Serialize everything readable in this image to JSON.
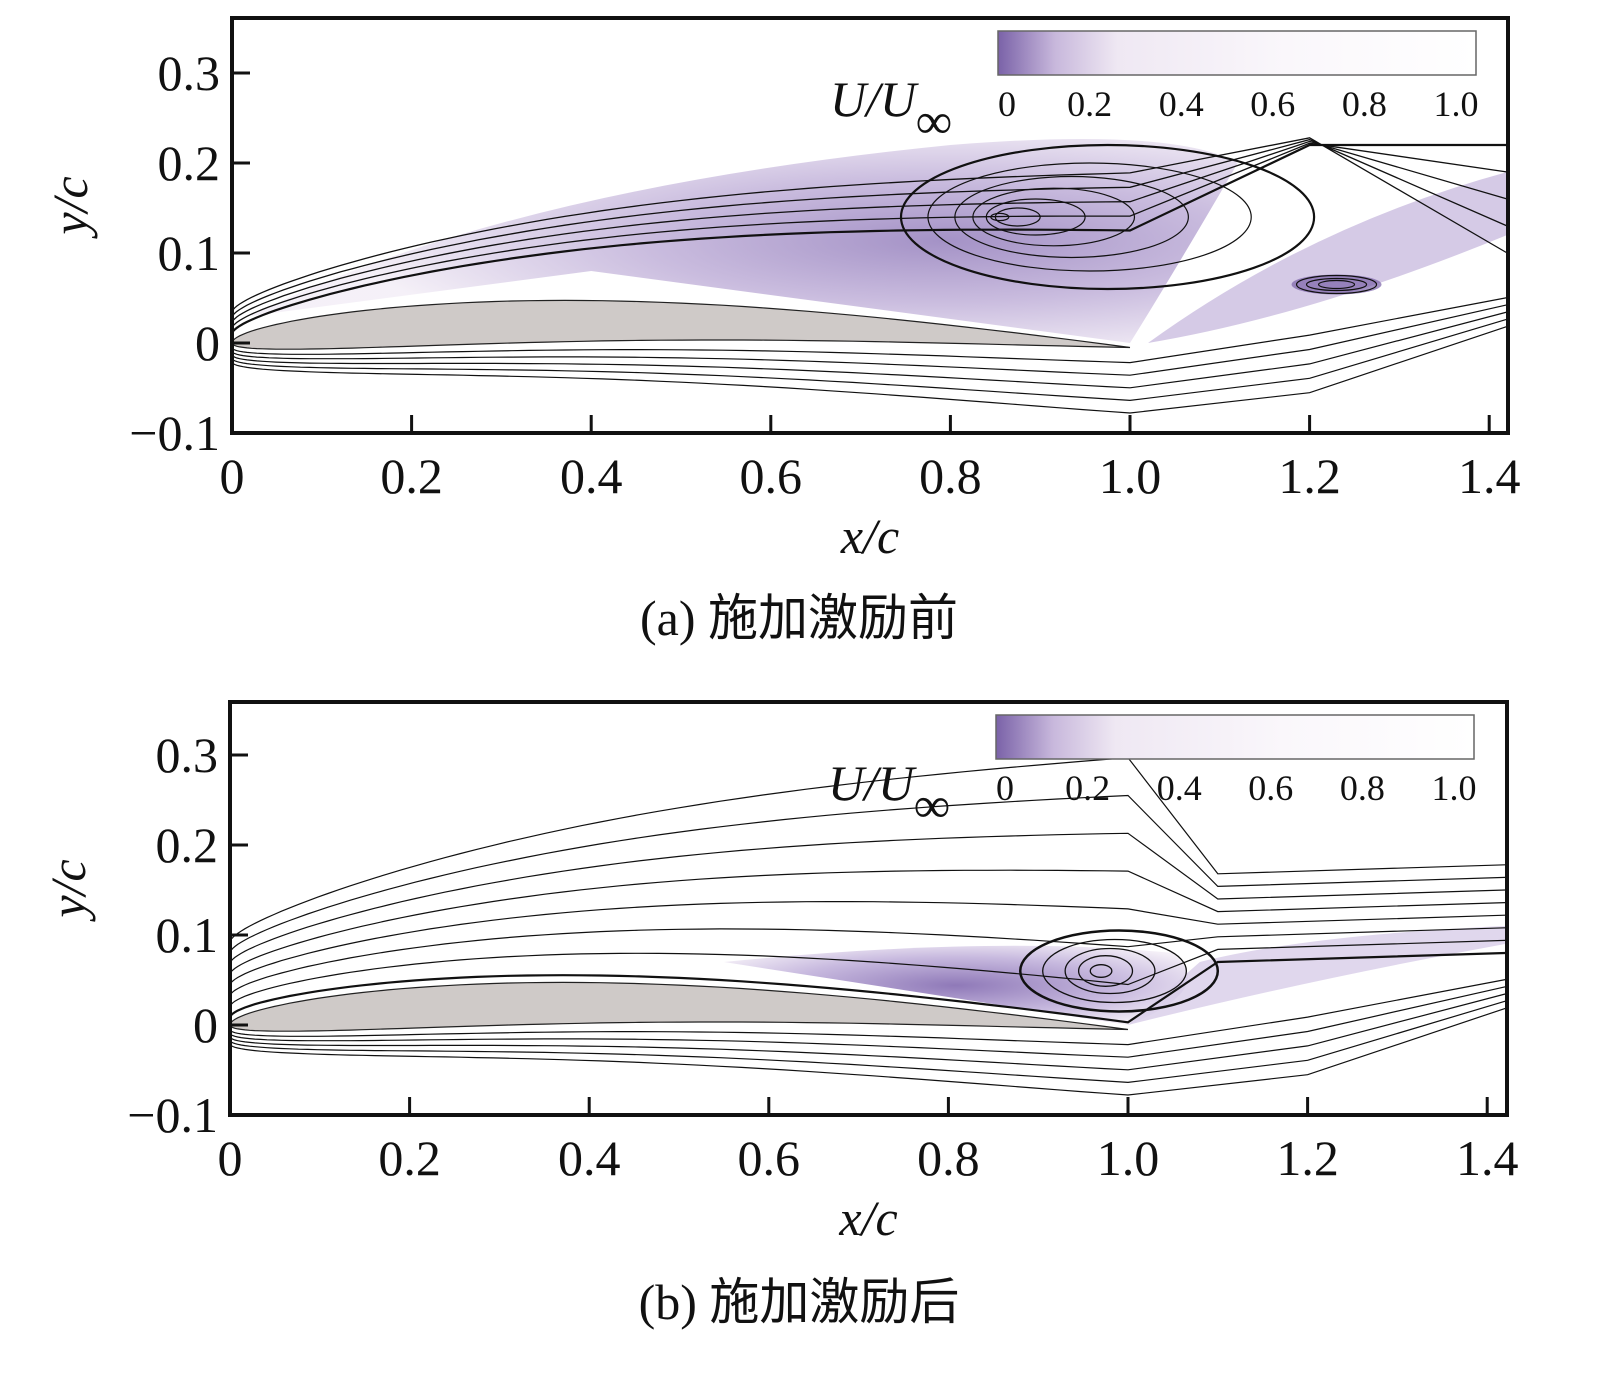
{
  "chart_data": [
    {
      "type": "contour",
      "caption": "(a) 施加激励前",
      "xlabel": "x/c",
      "ylabel": "y/c",
      "xlim": [
        0,
        1.42
      ],
      "ylim": [
        -0.1,
        0.36
      ],
      "xticks": [
        "0",
        "0.2",
        "0.4",
        "0.6",
        "0.8",
        "1.0",
        "1.2",
        "1.4"
      ],
      "xtick_values": [
        0,
        0.2,
        0.4,
        0.6,
        0.8,
        1.0,
        1.2,
        1.4
      ],
      "yticks": [
        "−0.1",
        "0",
        "0.1",
        "0.2",
        "0.3"
      ],
      "ytick_values": [
        -0.1,
        0,
        0.1,
        0.2,
        0.3
      ],
      "colorbar": {
        "label": "U/U∞",
        "ticks": [
          "0",
          "0.2",
          "0.4",
          "0.6",
          "0.8",
          "1.0"
        ],
        "range": [
          0,
          1.0
        ],
        "low_color": "#7a62a8",
        "high_color": "#ffffff"
      },
      "features": {
        "separation_bubble_center": [
          0.97,
          0.14
        ],
        "secondary_vortex_center": [
          1.23,
          0.065
        ]
      }
    },
    {
      "type": "contour",
      "caption": "(b) 施加激励后",
      "xlabel": "x/c",
      "ylabel": "y/c",
      "xlim": [
        0,
        1.42
      ],
      "ylim": [
        -0.1,
        0.36
      ],
      "xticks": [
        "0",
        "0.2",
        "0.4",
        "0.6",
        "0.8",
        "1.0",
        "1.2",
        "1.4"
      ],
      "xtick_values": [
        0,
        0.2,
        0.4,
        0.6,
        0.8,
        1.0,
        1.2,
        1.4
      ],
      "yticks": [
        "−0.1",
        "0",
        "0.1",
        "0.2",
        "0.3"
      ],
      "ytick_values": [
        -0.1,
        0,
        0.1,
        0.2,
        0.3
      ],
      "colorbar": {
        "label": "U/U∞",
        "ticks": [
          "0",
          "0.2",
          "0.4",
          "0.6",
          "0.8",
          "1.0"
        ],
        "range": [
          0,
          1.0
        ],
        "low_color": "#7a62a8",
        "high_color": "#ffffff"
      },
      "features": {
        "separation_bubble_center": [
          0.99,
          0.06
        ]
      }
    }
  ]
}
